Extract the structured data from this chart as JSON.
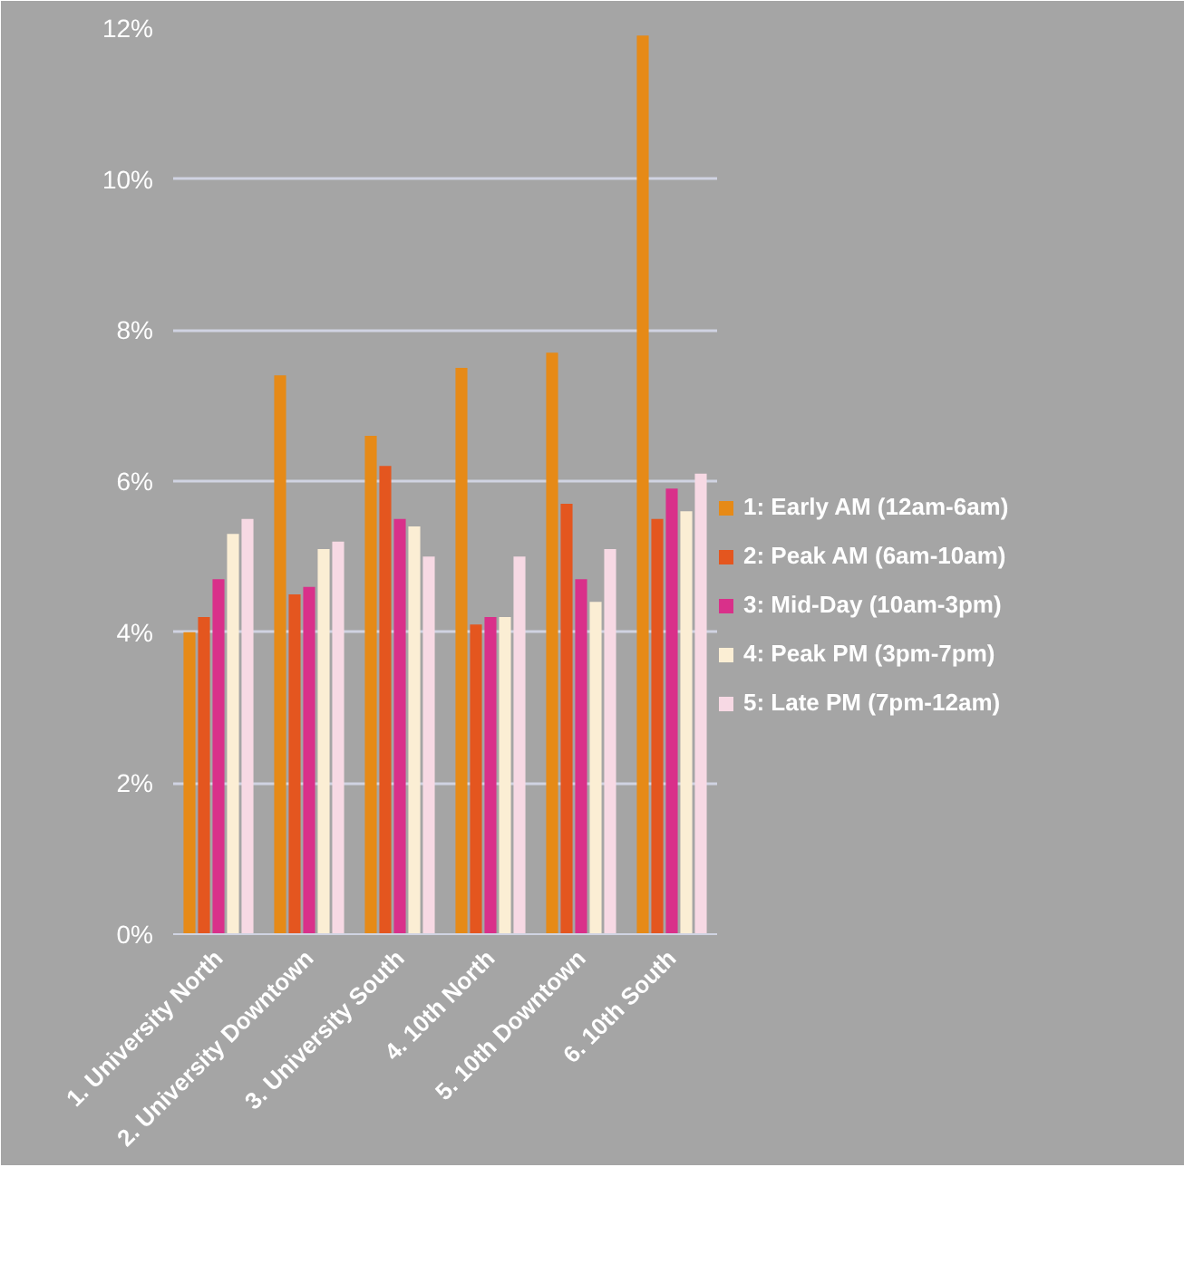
{
  "chart_data": {
    "type": "bar",
    "categories": [
      "1. University North",
      "2. University Downtown",
      "3. University South",
      "4. 10th North",
      "5. 10th Downtown",
      "6. 10th South"
    ],
    "series": [
      {
        "name": "1: Early AM (12am-6am)",
        "color": "#e68a17",
        "values": [
          4.0,
          7.4,
          6.6,
          7.5,
          7.7,
          11.9
        ]
      },
      {
        "name": "2: Peak AM (6am-10am)",
        "color": "#e4561f",
        "values": [
          4.2,
          4.5,
          6.2,
          4.1,
          5.7,
          5.5
        ]
      },
      {
        "name": "3: Mid-Day (10am-3pm)",
        "color": "#d9308a",
        "values": [
          4.7,
          4.6,
          5.5,
          4.2,
          4.7,
          5.9
        ]
      },
      {
        "name": "4: Peak PM (3pm-7pm)",
        "color": "#fbeed4",
        "values": [
          5.3,
          5.1,
          5.4,
          4.2,
          4.4,
          5.6
        ]
      },
      {
        "name": "5: Late PM (7pm-12am)",
        "color": "#f7d9e4",
        "values": [
          5.5,
          5.2,
          5.0,
          5.0,
          5.1,
          6.1
        ]
      }
    ],
    "ylim": [
      0,
      12
    ],
    "yticks": [
      {
        "value": 0,
        "label": "0%"
      },
      {
        "value": 2,
        "label": "2%"
      },
      {
        "value": 4,
        "label": "4%"
      },
      {
        "value": 6,
        "label": "6%"
      },
      {
        "value": 8,
        "label": "8%"
      },
      {
        "value": 10,
        "label": "10%"
      },
      {
        "value": 12,
        "label": "12%"
      }
    ],
    "grid": "y",
    "legend": "right"
  }
}
